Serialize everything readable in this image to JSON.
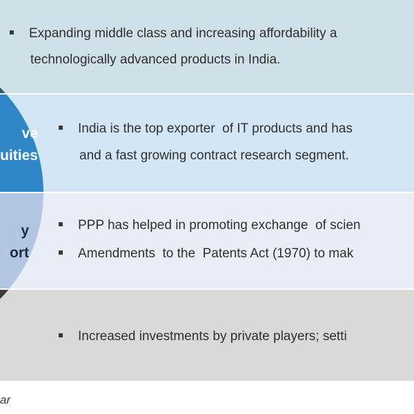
{
  "rows": [
    {
      "lines": [
        "Expanding middle class and increasing affordability a",
        "technologically advanced products in India."
      ]
    },
    {
      "label_lines": [
        "ve",
        "uities"
      ],
      "lines": [
        "India is the top exporter  of IT products and has",
        "and a fast growing contract research segment."
      ]
    },
    {
      "label_lines": [
        "y",
        "ort"
      ],
      "lines": [
        "PPP has helped in promoting exchange  of scien",
        "Amendments  to the  Patents Act (1970) to mak"
      ]
    },
    {
      "lines": [
        "Increased investments by private players; setti"
      ]
    }
  ],
  "footer": {
    "source": "ar"
  },
  "colors": {
    "band_1": "#cfe0e8",
    "band_2": "#d3e6f5",
    "band_3": "#e9eef6",
    "band_4": "#d9d9d9",
    "circle_teal": "#2e5866",
    "circle_blue": "#2f86c7",
    "circle_light": "#b3c7e3",
    "circle_dark": "#3b3b3b"
  }
}
